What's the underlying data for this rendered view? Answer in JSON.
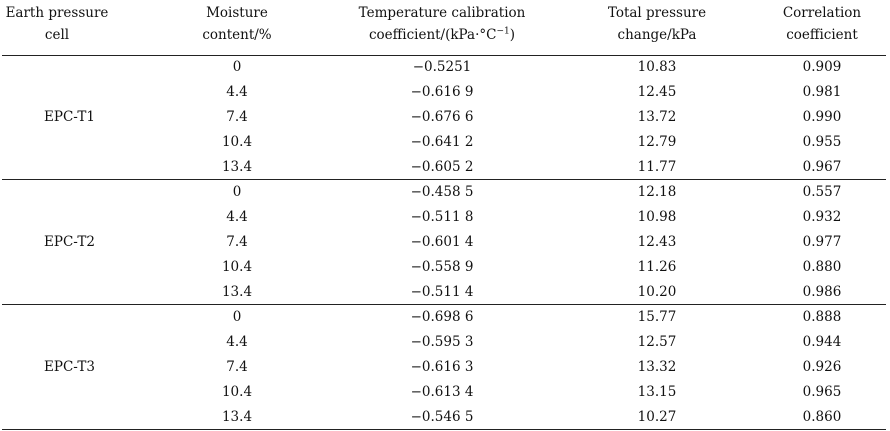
{
  "table": {
    "headers": [
      {
        "line1": "Earth pressure",
        "line2": "cell"
      },
      {
        "line1": "Moisture",
        "line2": "content/%"
      },
      {
        "line1": "Temperature calibration",
        "line2": "coefficient/(kPa·°C",
        "line2_sup": "−1",
        "line2_tail": ")"
      },
      {
        "line1": "Total pressure",
        "line2": "change/kPa"
      },
      {
        "line1": "Correlation",
        "line2": "coefficient"
      }
    ],
    "groups": [
      {
        "cell": "EPC-T1",
        "rows": [
          {
            "moisture": "0",
            "coef": "−0.5251",
            "total": "10.83",
            "corr": "0.909"
          },
          {
            "moisture": "4.4",
            "coef": "−0.616 9",
            "total": "12.45",
            "corr": "0.981"
          },
          {
            "moisture": "7.4",
            "coef": "−0.676 6",
            "total": "13.72",
            "corr": "0.990"
          },
          {
            "moisture": "10.4",
            "coef": "−0.641 2",
            "total": "12.79",
            "corr": "0.955"
          },
          {
            "moisture": "13.4",
            "coef": "−0.605 2",
            "total": "11.77",
            "corr": "0.967"
          }
        ]
      },
      {
        "cell": "EPC-T2",
        "rows": [
          {
            "moisture": "0",
            "coef": "−0.458 5",
            "total": "12.18",
            "corr": "0.557"
          },
          {
            "moisture": "4.4",
            "coef": "−0.511 8",
            "total": "10.98",
            "corr": "0.932"
          },
          {
            "moisture": "7.4",
            "coef": "−0.601 4",
            "total": "12.43",
            "corr": "0.977"
          },
          {
            "moisture": "10.4",
            "coef": "−0.558 9",
            "total": "11.26",
            "corr": "0.880"
          },
          {
            "moisture": "13.4",
            "coef": "−0.511 4",
            "total": "10.20",
            "corr": "0.986"
          }
        ]
      },
      {
        "cell": "EPC-T3",
        "rows": [
          {
            "moisture": "0",
            "coef": "−0.698 6",
            "total": "15.77",
            "corr": "0.888"
          },
          {
            "moisture": "4.4",
            "coef": "−0.595 3",
            "total": "12.57",
            "corr": "0.944"
          },
          {
            "moisture": "7.4",
            "coef": "−0.616 3",
            "total": "13.32",
            "corr": "0.926"
          },
          {
            "moisture": "10.4",
            "coef": "−0.613 4",
            "total": "13.15",
            "corr": "0.965"
          },
          {
            "moisture": "13.4",
            "coef": "−0.546 5",
            "total": "10.27",
            "corr": "0.860"
          }
        ]
      }
    ]
  }
}
